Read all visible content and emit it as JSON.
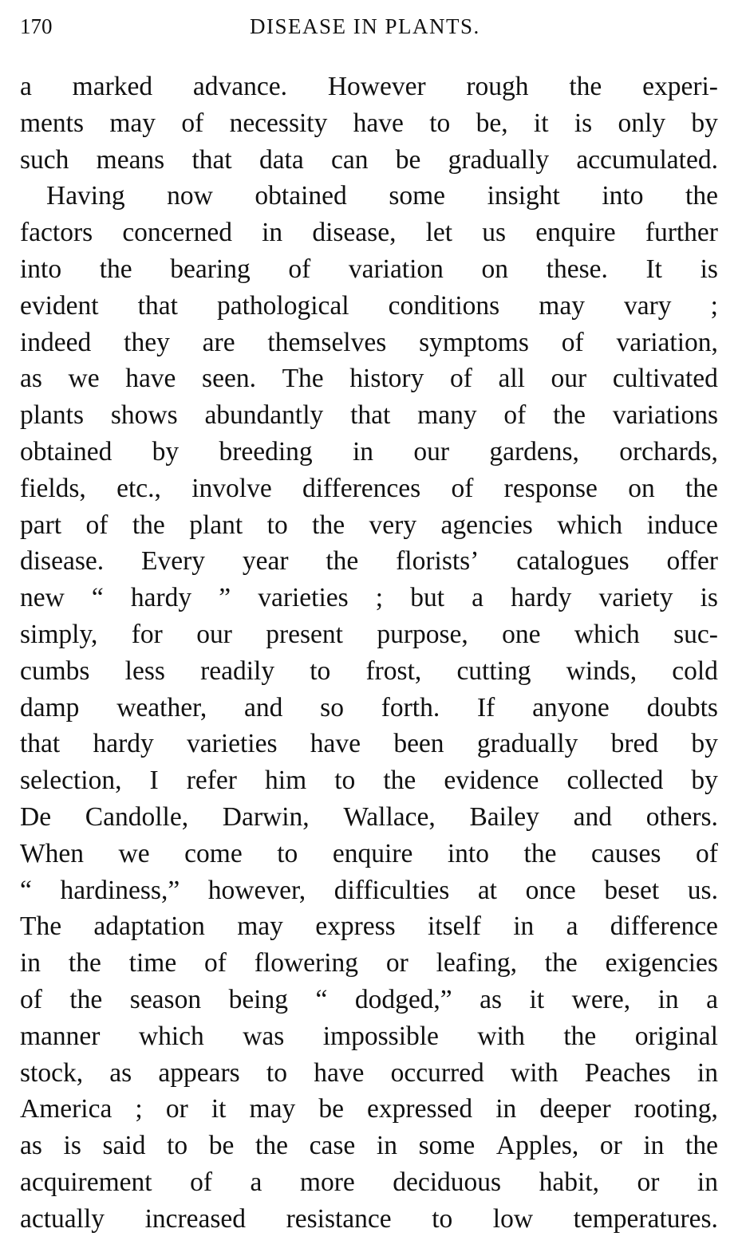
{
  "header": {
    "page_number": "170",
    "running_title": "DISEASE IN PLANTS."
  },
  "lines": [
    "a marked advance.  However rough the experi-",
    "ments may of necessity have to be, it is only by",
    "such means that data can be gradually accumulated.",
    "Having now obtained some insight into the",
    "factors concerned in disease, let us enquire further",
    "into the bearing of variation on these.  It is",
    "evident that pathological conditions may vary ;",
    "indeed they are themselves symptoms of variation,",
    "as we have seen.  The history of all our cultivated",
    "plants shows abundantly that many of the variations",
    "obtained by breeding in our gardens, orchards,",
    "fields, etc., involve differences of response on the",
    "part of the plant to the very agencies which induce",
    "disease.  Every year the florists’ catalogues offer",
    "new “ hardy ” varieties ; but a hardy variety is",
    "simply, for our present purpose, one which suc-",
    "cumbs less readily to frost, cutting winds, cold",
    "damp weather, and so forth.  If anyone doubts",
    "that hardy varieties have been gradually bred by",
    "selection, I refer him to the evidence collected by",
    "De Candolle, Darwin, Wallace, Bailey and others.",
    "When we come to enquire into the causes of",
    "“ hardiness,” however, difficulties at once beset us.",
    "The adaptation may express itself in a difference",
    "in the time of flowering or leafing, the exigencies",
    "of the season being “ dodged,” as it were, in a",
    "manner which was impossible with the original",
    "stock, as appears to have occurred with Peaches in",
    "America ; or it may be expressed in deeper rooting,",
    "as is said to be the case in some Apples, or in the",
    "acquirement of a more deciduous habit, or in",
    "actually increased resistance to low temperatures."
  ]
}
